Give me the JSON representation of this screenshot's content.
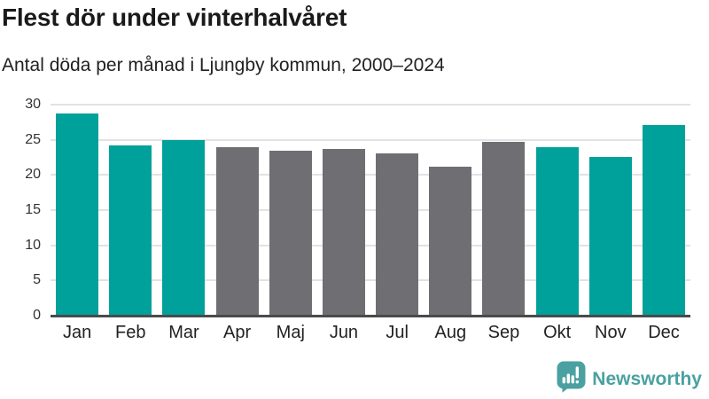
{
  "chart_data": {
    "type": "bar",
    "title": "Flest dör under vinterhalvåret",
    "subtitle": "Antal döda per månad i Ljungby kommun, 2000–2024",
    "categories": [
      "Jan",
      "Feb",
      "Mar",
      "Apr",
      "Maj",
      "Jun",
      "Jul",
      "Aug",
      "Sep",
      "Okt",
      "Nov",
      "Dec"
    ],
    "values": [
      28.8,
      24.2,
      24.9,
      23.9,
      23.5,
      23.7,
      23.1,
      21.2,
      24.7,
      24.0,
      22.6,
      27.1
    ],
    "bar_colors": [
      "teal",
      "teal",
      "teal",
      "gray",
      "gray",
      "gray",
      "gray",
      "gray",
      "gray",
      "teal",
      "teal",
      "teal"
    ],
    "palette": {
      "teal": "#00a19a",
      "gray": "#6e6e73"
    },
    "xlabel": "",
    "ylabel": "",
    "ylim": [
      0,
      30
    ],
    "yticks": [
      0,
      5,
      10,
      15,
      20,
      25,
      30
    ],
    "grid": true,
    "legend": false
  },
  "footer": {
    "brand": "Newsworthy",
    "logo_icon": "newsworthy-chart-bubble-icon",
    "brand_color": "#4ba1a1"
  }
}
